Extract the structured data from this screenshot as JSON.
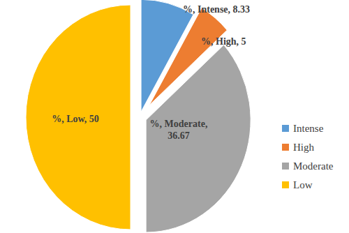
{
  "chart_data": {
    "type": "pie",
    "categories": [
      "Intense",
      "High",
      "Moderate",
      "Low"
    ],
    "values": [
      8.33,
      5,
      36.67,
      50
    ],
    "value_labels": [
      "%, Intense, 8.33",
      "%, High, 5",
      "%, Moderate, 36.67",
      "%, Low, 50"
    ],
    "colors": [
      "#5b9bd5",
      "#ed7d31",
      "#a5a5a5",
      "#ffc000"
    ],
    "data_labels": true,
    "legend": "right"
  }
}
